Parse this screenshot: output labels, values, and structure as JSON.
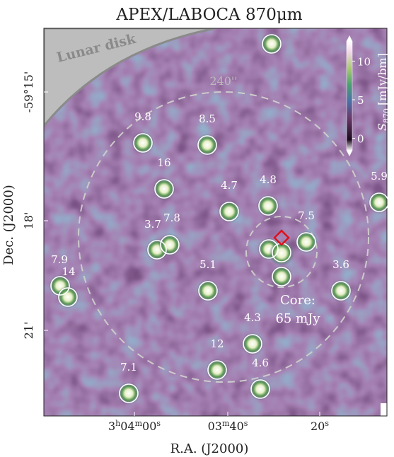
{
  "chart_data": {
    "type": "image",
    "title": "APEX/LABOCA 870μm",
    "xlabel": "R.A. (J2000)",
    "ylabel": "Dec. (J2000)",
    "xtick_labels": [
      "3h04m00s",
      "03m40s",
      "20s"
    ],
    "ytick_labels": [
      "-59°15'",
      "18'",
      "21'"
    ],
    "colorbar": {
      "symbol": "S",
      "subscript": "870",
      "unit": "[mJy/bm]",
      "lim": [
        -1.6,
        12.6
      ],
      "ticks": [
        0,
        5,
        10
      ]
    },
    "annotations": {
      "lunar": "Lunar disk",
      "radius": "240''",
      "core": [
        "Core:",
        "65 mJy"
      ]
    },
    "sources": [
      null,
      "9.8",
      "8.5",
      "16",
      "4.7",
      "4.8",
      "5.9",
      "3.7",
      "7.8",
      "7.5",
      null,
      null,
      "7.9",
      "14",
      "5.1",
      "3.6",
      "4.3",
      "12",
      "4.6",
      "7.1"
    ]
  }
}
